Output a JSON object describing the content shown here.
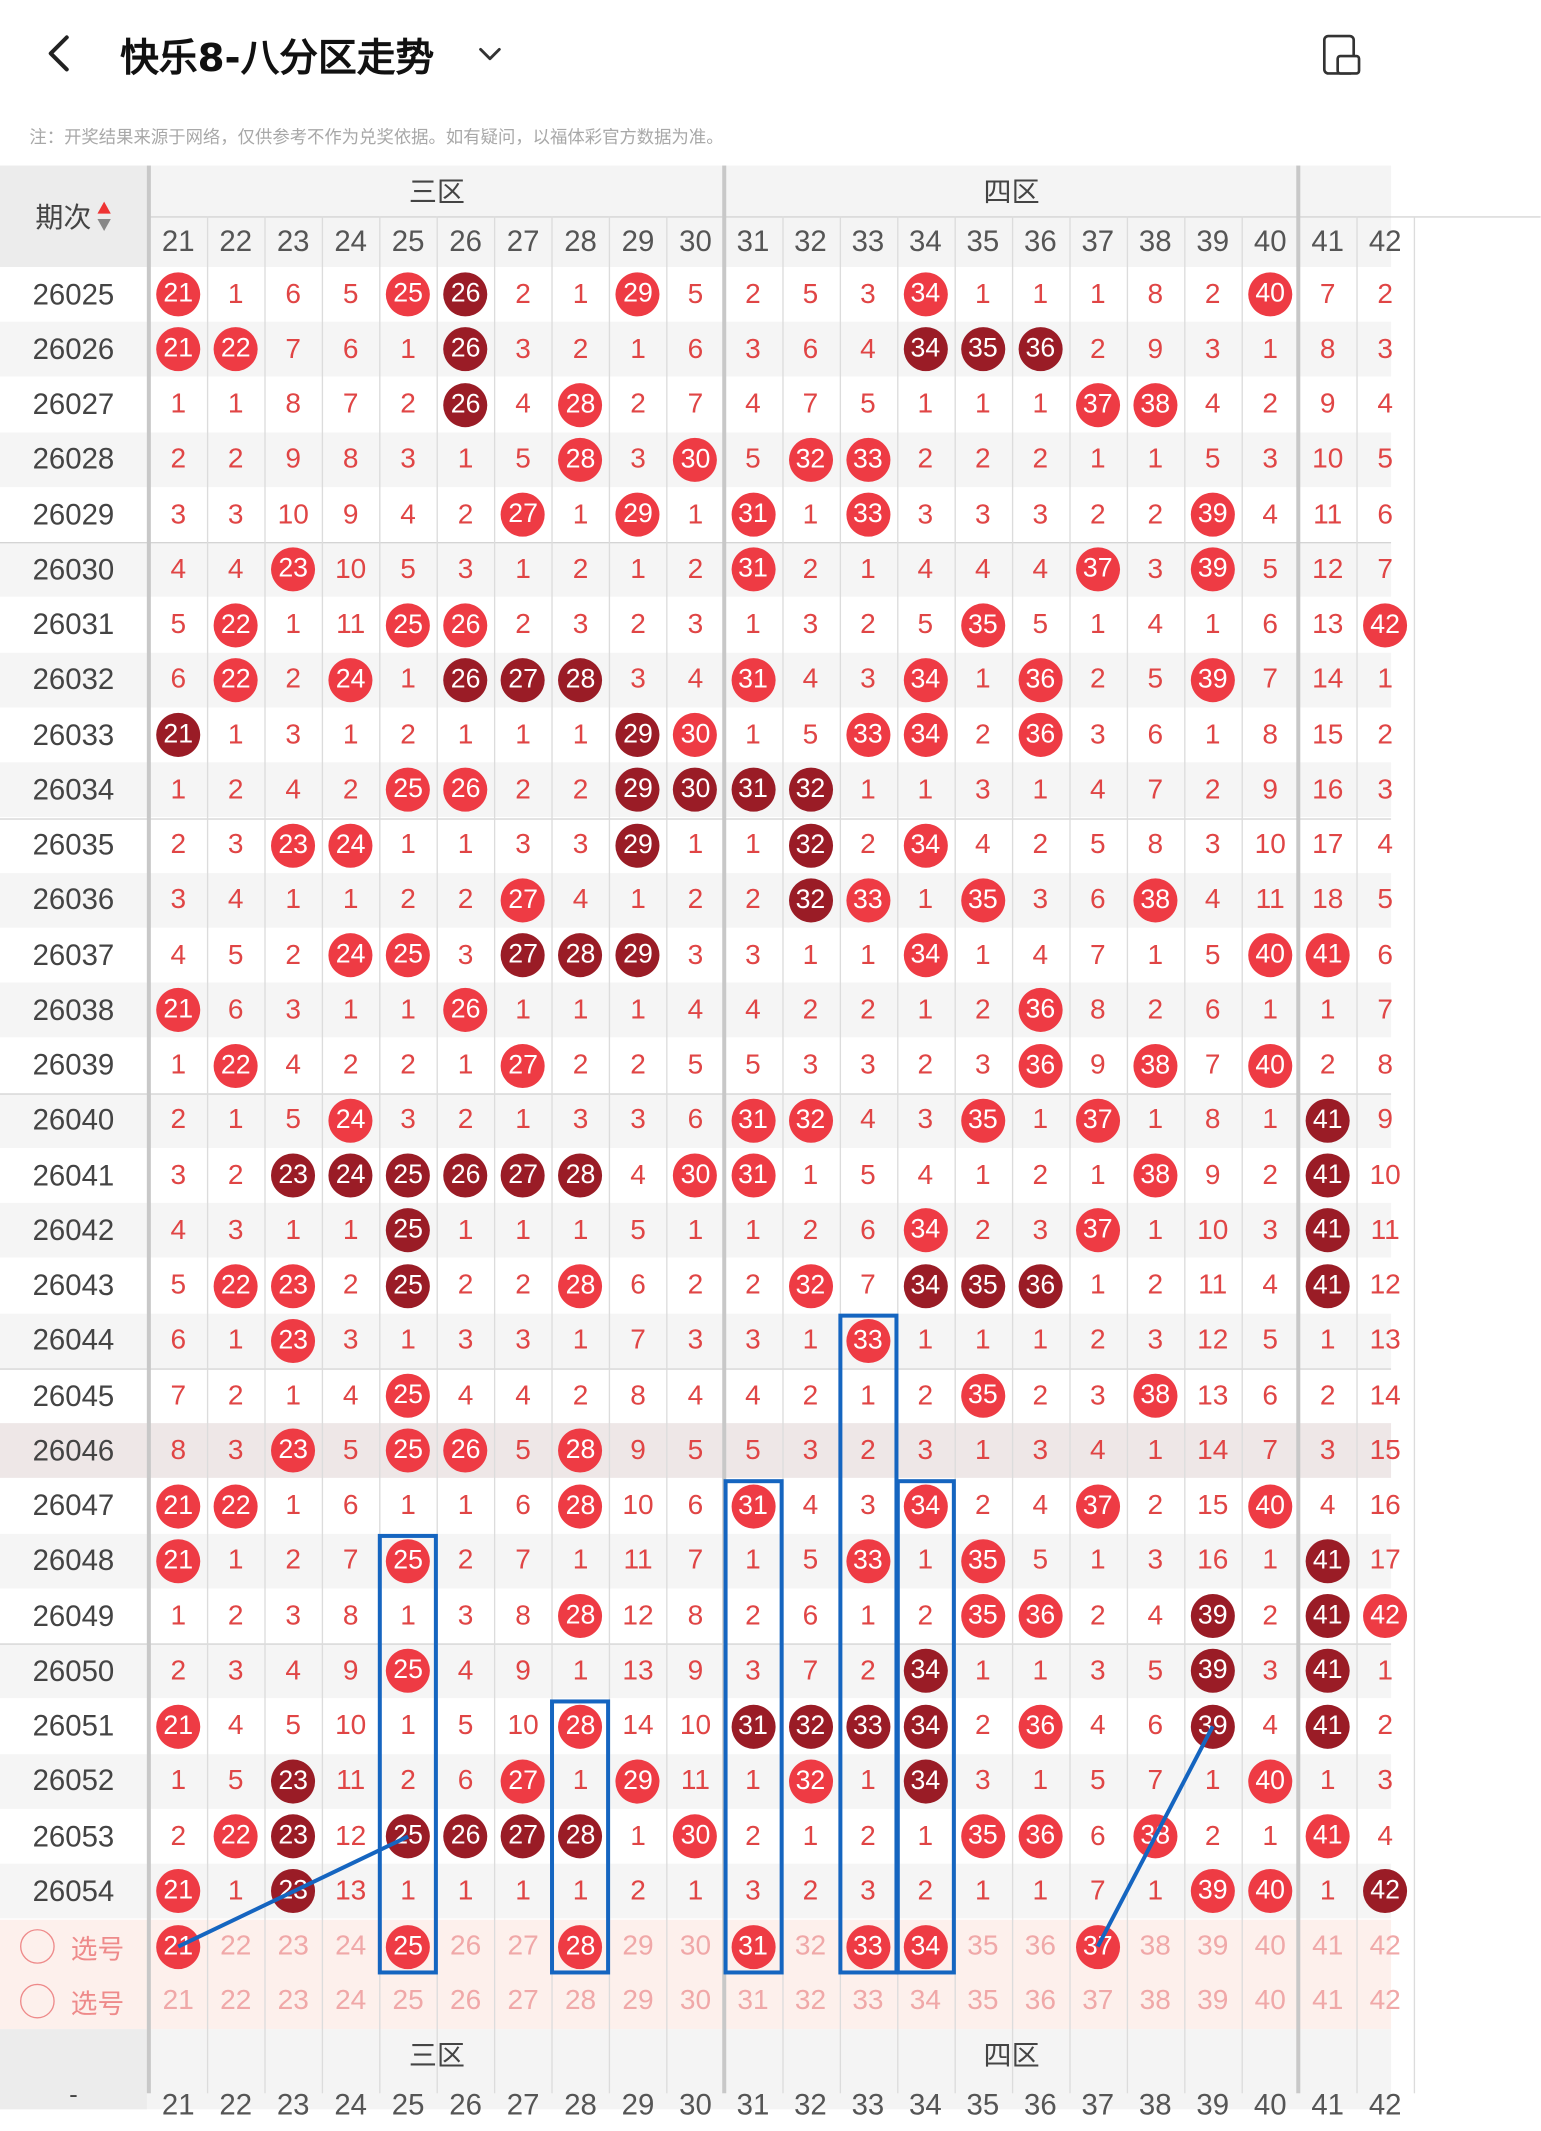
{
  "header": {
    "title": "快乐8-八分区走势",
    "back_icon": "chevron-left-icon",
    "dropdown_icon": "chevron-down-icon",
    "rotate_icon": "screen-rotate-icon"
  },
  "notice": "注：开奖结果来源于网络，仅供参考不作为兑奖依据。如有疑问，以福体彩官方数据为准。",
  "table": {
    "period_header": "期次",
    "zones": [
      "三区",
      "四区"
    ],
    "columns": [
      "21",
      "22",
      "23",
      "24",
      "25",
      "26",
      "27",
      "28",
      "29",
      "30",
      "31",
      "32",
      "33",
      "34",
      "35",
      "36",
      "37",
      "38",
      "39",
      "40",
      "41",
      "42"
    ],
    "colors": {
      "ball_red": "#ee3b44",
      "ball_dark": "#9a1c26",
      "miss_text": "#e04545",
      "box": "#1565c0"
    },
    "rows": [
      {
        "period": "26025",
        "cells": [
          "r:21",
          "1",
          "6",
          "5",
          "r:25",
          "d:26",
          "2",
          "1",
          "r:29",
          "5",
          "2",
          "5",
          "3",
          "r:34",
          "1",
          "1",
          "1",
          "8",
          "2",
          "r:40",
          "7",
          "2"
        ]
      },
      {
        "period": "26026",
        "cells": [
          "r:21",
          "r:22",
          "7",
          "6",
          "1",
          "d:26",
          "3",
          "2",
          "1",
          "6",
          "3",
          "6",
          "4",
          "d:34",
          "d:35",
          "d:36",
          "2",
          "9",
          "3",
          "1",
          "8",
          "3"
        ]
      },
      {
        "period": "26027",
        "cells": [
          "1",
          "1",
          "8",
          "7",
          "2",
          "d:26",
          "4",
          "r:28",
          "2",
          "7",
          "4",
          "7",
          "5",
          "1",
          "1",
          "1",
          "r:37",
          "r:38",
          "4",
          "2",
          "9",
          "4"
        ]
      },
      {
        "period": "26028",
        "cells": [
          "2",
          "2",
          "9",
          "8",
          "3",
          "1",
          "5",
          "r:28",
          "3",
          "r:30",
          "5",
          "r:32",
          "r:33",
          "2",
          "2",
          "2",
          "1",
          "1",
          "5",
          "3",
          "10",
          "5"
        ]
      },
      {
        "period": "26029",
        "cells": [
          "3",
          "3",
          "10",
          "9",
          "4",
          "2",
          "r:27",
          "1",
          "r:29",
          "1",
          "r:31",
          "1",
          "r:33",
          "3",
          "3",
          "3",
          "2",
          "2",
          "r:39",
          "4",
          "11",
          "6"
        ]
      },
      {
        "period": "26030",
        "cells": [
          "4",
          "4",
          "r:23",
          "10",
          "5",
          "3",
          "1",
          "2",
          "1",
          "2",
          "r:31",
          "2",
          "1",
          "4",
          "4",
          "4",
          "r:37",
          "3",
          "r:39",
          "5",
          "12",
          "7"
        ]
      },
      {
        "period": "26031",
        "cells": [
          "5",
          "r:22",
          "1",
          "11",
          "r:25",
          "r:26",
          "2",
          "3",
          "2",
          "3",
          "1",
          "3",
          "2",
          "5",
          "r:35",
          "5",
          "1",
          "4",
          "1",
          "6",
          "13",
          "r:42"
        ]
      },
      {
        "period": "26032",
        "cells": [
          "6",
          "r:22",
          "2",
          "r:24",
          "1",
          "d:26",
          "d:27",
          "d:28",
          "3",
          "4",
          "r:31",
          "4",
          "3",
          "r:34",
          "1",
          "r:36",
          "2",
          "5",
          "r:39",
          "7",
          "14",
          "1"
        ]
      },
      {
        "period": "26033",
        "cells": [
          "d:21",
          "1",
          "3",
          "1",
          "2",
          "1",
          "1",
          "1",
          "d:29",
          "r:30",
          "1",
          "5",
          "r:33",
          "r:34",
          "2",
          "r:36",
          "3",
          "6",
          "1",
          "8",
          "15",
          "2"
        ]
      },
      {
        "period": "26034",
        "cells": [
          "1",
          "2",
          "4",
          "2",
          "r:25",
          "r:26",
          "2",
          "2",
          "d:29",
          "d:30",
          "d:31",
          "d:32",
          "1",
          "1",
          "3",
          "1",
          "4",
          "7",
          "2",
          "9",
          "16",
          "3"
        ]
      },
      {
        "period": "26035",
        "cells": [
          "2",
          "3",
          "r:23",
          "r:24",
          "1",
          "1",
          "3",
          "3",
          "d:29",
          "1",
          "1",
          "d:32",
          "2",
          "r:34",
          "4",
          "2",
          "5",
          "8",
          "3",
          "10",
          "17",
          "4"
        ]
      },
      {
        "period": "26036",
        "cells": [
          "3",
          "4",
          "1",
          "1",
          "2",
          "2",
          "r:27",
          "4",
          "1",
          "2",
          "2",
          "d:32",
          "r:33",
          "1",
          "r:35",
          "3",
          "6",
          "r:38",
          "4",
          "11",
          "18",
          "5"
        ]
      },
      {
        "period": "26037",
        "cells": [
          "4",
          "5",
          "2",
          "r:24",
          "r:25",
          "3",
          "d:27",
          "d:28",
          "d:29",
          "3",
          "3",
          "1",
          "1",
          "r:34",
          "1",
          "4",
          "7",
          "1",
          "5",
          "r:40",
          "r:41",
          "6"
        ]
      },
      {
        "period": "26038",
        "cells": [
          "r:21",
          "6",
          "3",
          "1",
          "1",
          "r:26",
          "1",
          "1",
          "1",
          "4",
          "4",
          "2",
          "2",
          "1",
          "2",
          "r:36",
          "8",
          "2",
          "6",
          "1",
          "1",
          "7"
        ]
      },
      {
        "period": "26039",
        "cells": [
          "1",
          "r:22",
          "4",
          "2",
          "2",
          "1",
          "r:27",
          "2",
          "2",
          "5",
          "5",
          "3",
          "3",
          "2",
          "3",
          "r:36",
          "9",
          "r:38",
          "7",
          "r:40",
          "2",
          "8"
        ]
      },
      {
        "period": "26040",
        "cells": [
          "2",
          "1",
          "5",
          "r:24",
          "3",
          "2",
          "1",
          "3",
          "3",
          "6",
          "r:31",
          "r:32",
          "4",
          "3",
          "r:35",
          "1",
          "r:37",
          "1",
          "8",
          "1",
          "d:41",
          "9"
        ]
      },
      {
        "period": "26041",
        "cells": [
          "3",
          "2",
          "d:23",
          "d:24",
          "d:25",
          "d:26",
          "d:27",
          "d:28",
          "4",
          "r:30",
          "r:31",
          "1",
          "5",
          "4",
          "1",
          "2",
          "1",
          "r:38",
          "9",
          "2",
          "d:41",
          "10"
        ]
      },
      {
        "period": "26042",
        "cells": [
          "4",
          "3",
          "1",
          "1",
          "d:25",
          "1",
          "1",
          "1",
          "5",
          "1",
          "1",
          "2",
          "6",
          "r:34",
          "2",
          "3",
          "r:37",
          "1",
          "10",
          "3",
          "d:41",
          "11"
        ]
      },
      {
        "period": "26043",
        "cells": [
          "5",
          "r:22",
          "r:23",
          "2",
          "d:25",
          "2",
          "2",
          "r:28",
          "6",
          "2",
          "2",
          "r:32",
          "7",
          "d:34",
          "d:35",
          "d:36",
          "1",
          "2",
          "11",
          "4",
          "d:41",
          "12"
        ]
      },
      {
        "period": "26044",
        "cells": [
          "6",
          "1",
          "r:23",
          "3",
          "1",
          "3",
          "3",
          "1",
          "7",
          "3",
          "3",
          "1",
          "r:33",
          "1",
          "1",
          "1",
          "2",
          "3",
          "12",
          "5",
          "1",
          "13"
        ]
      },
      {
        "period": "26045",
        "cells": [
          "7",
          "2",
          "1",
          "4",
          "r:25",
          "4",
          "4",
          "2",
          "8",
          "4",
          "4",
          "2",
          "1",
          "2",
          "r:35",
          "2",
          "3",
          "r:38",
          "13",
          "6",
          "2",
          "14"
        ]
      },
      {
        "period": "26046",
        "cells": [
          "8",
          "3",
          "r:23",
          "5",
          "r:25",
          "r:26",
          "5",
          "r:28",
          "9",
          "5",
          "5",
          "3",
          "2",
          "3",
          "1",
          "3",
          "4",
          "1",
          "14",
          "7",
          "3",
          "15"
        ]
      },
      {
        "period": "26047",
        "cells": [
          "r:21",
          "r:22",
          "1",
          "6",
          "1",
          "1",
          "6",
          "r:28",
          "10",
          "6",
          "r:31",
          "4",
          "3",
          "r:34",
          "2",
          "4",
          "r:37",
          "2",
          "15",
          "r:40",
          "4",
          "16"
        ]
      },
      {
        "period": "26048",
        "cells": [
          "r:21",
          "1",
          "2",
          "7",
          "r:25",
          "2",
          "7",
          "1",
          "11",
          "7",
          "1",
          "5",
          "r:33",
          "1",
          "r:35",
          "5",
          "1",
          "3",
          "16",
          "1",
          "d:41",
          "17"
        ]
      },
      {
        "period": "26049",
        "cells": [
          "1",
          "2",
          "3",
          "8",
          "1",
          "3",
          "8",
          "r:28",
          "12",
          "8",
          "2",
          "6",
          "1",
          "2",
          "r:35",
          "r:36",
          "2",
          "4",
          "d:39",
          "2",
          "d:41",
          "r:42"
        ]
      },
      {
        "period": "26050",
        "cells": [
          "2",
          "3",
          "4",
          "9",
          "r:25",
          "4",
          "9",
          "1",
          "13",
          "9",
          "3",
          "7",
          "2",
          "d:34",
          "1",
          "1",
          "3",
          "5",
          "d:39",
          "3",
          "d:41",
          "1"
        ]
      },
      {
        "period": "26051",
        "cells": [
          "r:21",
          "4",
          "5",
          "10",
          "1",
          "5",
          "10",
          "r:28",
          "14",
          "10",
          "d:31",
          "d:32",
          "d:33",
          "d:34",
          "2",
          "r:36",
          "4",
          "6",
          "d:39",
          "4",
          "d:41",
          "2"
        ]
      },
      {
        "period": "26052",
        "cells": [
          "1",
          "5",
          "d:23",
          "11",
          "2",
          "6",
          "r:27",
          "1",
          "r:29",
          "11",
          "1",
          "r:32",
          "1",
          "d:34",
          "3",
          "1",
          "5",
          "7",
          "1",
          "r:40",
          "1",
          "3"
        ]
      },
      {
        "period": "26053",
        "cells": [
          "2",
          "r:22",
          "d:23",
          "12",
          "d:25",
          "d:26",
          "d:27",
          "d:28",
          "1",
          "r:30",
          "2",
          "1",
          "2",
          "1",
          "r:35",
          "r:36",
          "6",
          "r:38",
          "2",
          "1",
          "r:41",
          "4"
        ]
      },
      {
        "period": "26054",
        "cells": [
          "r:21",
          "1",
          "d:23",
          "13",
          "1",
          "1",
          "1",
          "1",
          "2",
          "1",
          "3",
          "2",
          "3",
          "2",
          "1",
          "1",
          "7",
          "1",
          "r:39",
          "r:40",
          "1",
          "d:42"
        ]
      }
    ],
    "select_rows": [
      {
        "label": "选号",
        "cells": [
          "r:21",
          "22",
          "23",
          "24",
          "r:25",
          "26",
          "27",
          "r:28",
          "29",
          "30",
          "r:31",
          "32",
          "r:33",
          "r:34",
          "35",
          "36",
          "r:37",
          "38",
          "39",
          "40",
          "41",
          "42"
        ]
      },
      {
        "label": "选号",
        "cells": [
          "21",
          "22",
          "23",
          "24",
          "25",
          "26",
          "27",
          "28",
          "29",
          "30",
          "31",
          "32",
          "33",
          "34",
          "35",
          "36",
          "37",
          "38",
          "39",
          "40",
          "41",
          "42"
        ]
      }
    ]
  }
}
